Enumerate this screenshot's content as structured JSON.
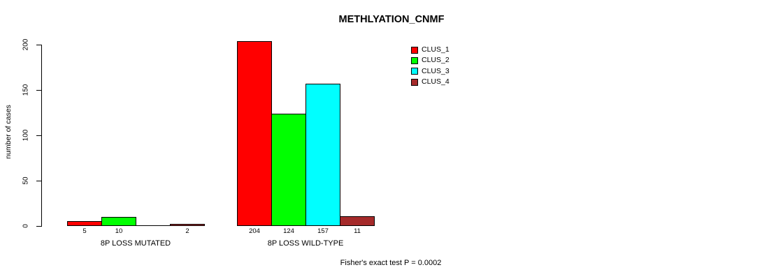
{
  "page": {
    "background_color": "#FFFFFF",
    "text_color": "#000000"
  },
  "chart_data": {
    "type": "bar",
    "title": "METHLYATION_CNMF",
    "ylabel": "number of cases",
    "xlabel": "",
    "ylim": [
      0,
      200
    ],
    "yticks": [
      "0",
      "50",
      "100",
      "150",
      "200"
    ],
    "ytick_values": [
      0,
      50,
      100,
      150,
      200
    ],
    "categories": [
      "8P LOSS MUTATED",
      "8P LOSS WILD-TYPE"
    ],
    "series": [
      {
        "name": "CLUS_1",
        "color": "#FF0000",
        "values": [
          5,
          204
        ]
      },
      {
        "name": "CLUS_2",
        "color": "#00FF00",
        "values": [
          10,
          124
        ]
      },
      {
        "name": "CLUS_3",
        "color": "#00FFFF",
        "values": [
          0,
          157
        ]
      },
      {
        "name": "CLUS_4",
        "color": "#A52A2A",
        "values": [
          2,
          11
        ]
      }
    ],
    "bar_value_labels": [
      "5",
      "10",
      "",
      "2",
      "204",
      "124",
      "157",
      "11"
    ],
    "legend_position": "top-right",
    "legend_entries": [
      "CLUS_1",
      "CLUS_2",
      "CLUS_3",
      "CLUS_4"
    ],
    "annotation": "Fisher's exact test P = 0.0002",
    "grid": false,
    "axis_color": "#000000",
    "bar_border_color": "#000000"
  }
}
